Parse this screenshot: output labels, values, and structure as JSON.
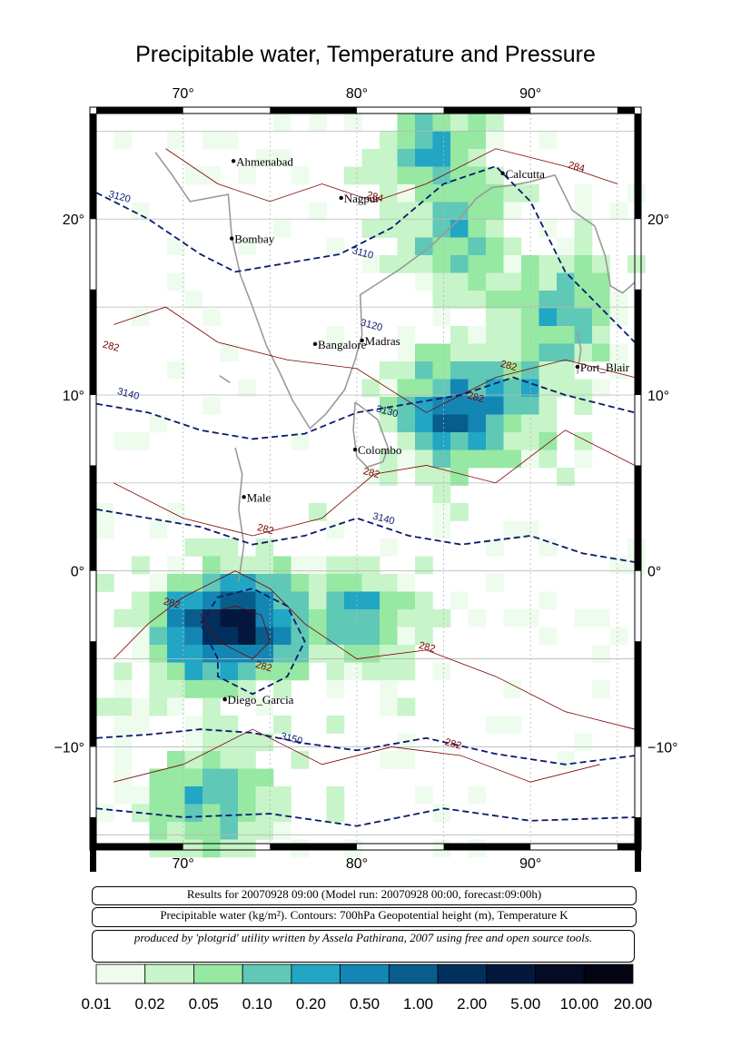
{
  "title": "Precipitable water, Temperature and Pressure",
  "map": {
    "lon_range": [
      65,
      96
    ],
    "lat_range": [
      -15.5,
      26
    ],
    "lon_ticks": [
      70,
      80,
      90
    ],
    "lat_ticks": [
      20,
      10,
      0,
      -10
    ],
    "lon_tick_labels": [
      "70°",
      "80°",
      "90°"
    ],
    "lat_tick_labels": [
      "20°",
      "10°",
      "0°",
      "−10°"
    ],
    "grid": true
  },
  "cities": [
    {
      "name": "Ahmenabad",
      "lon": 72.9,
      "lat": 23.3
    },
    {
      "name": "Nagpur",
      "lon": 79.1,
      "lat": 21.2
    },
    {
      "name": "Calcutta",
      "lon": 88.4,
      "lat": 22.6
    },
    {
      "name": "Bombay",
      "lon": 72.8,
      "lat": 18.9
    },
    {
      "name": "Bangalore",
      "lon": 77.6,
      "lat": 12.9
    },
    {
      "name": "Madras",
      "lon": 80.3,
      "lat": 13.1
    },
    {
      "name": "Port_Blair",
      "lon": 92.7,
      "lat": 11.6
    },
    {
      "name": "Colombo",
      "lon": 79.9,
      "lat": 6.9
    },
    {
      "name": "Male",
      "lon": 73.5,
      "lat": 4.2
    },
    {
      "name": "Diego_Garcia",
      "lon": 72.4,
      "lat": -7.3
    }
  ],
  "contour_labels": [
    {
      "text": "3120",
      "lon": 66.3,
      "lat": 21.1,
      "kind": "height"
    },
    {
      "text": "3110",
      "lon": 80.3,
      "lat": 17.9,
      "kind": "height"
    },
    {
      "text": "3120",
      "lon": 80.8,
      "lat": 13.8,
      "kind": "height"
    },
    {
      "text": "3140",
      "lon": 66.8,
      "lat": 9.9,
      "kind": "height"
    },
    {
      "text": "3130",
      "lon": 81.7,
      "lat": 8.9,
      "kind": "height"
    },
    {
      "text": "3140",
      "lon": 81.5,
      "lat": 2.8,
      "kind": "height"
    },
    {
      "text": "3150",
      "lon": 76.2,
      "lat": -9.7,
      "kind": "height"
    },
    {
      "text": "282",
      "lon": 65.8,
      "lat": 12.6,
      "kind": "temp"
    },
    {
      "text": "284",
      "lon": 81.0,
      "lat": 21.1,
      "kind": "temp"
    },
    {
      "text": "284",
      "lon": 92.6,
      "lat": 22.8,
      "kind": "temp"
    },
    {
      "text": "282",
      "lon": 88.7,
      "lat": 11.5,
      "kind": "temp"
    },
    {
      "text": "282",
      "lon": 86.8,
      "lat": 9.7,
      "kind": "temp"
    },
    {
      "text": "282",
      "lon": 80.8,
      "lat": 5.4,
      "kind": "temp"
    },
    {
      "text": "282",
      "lon": 74.7,
      "lat": 2.2,
      "kind": "temp"
    },
    {
      "text": "282",
      "lon": 69.3,
      "lat": -2.0,
      "kind": "temp"
    },
    {
      "text": "282",
      "lon": 74.6,
      "lat": -5.6,
      "kind": "temp"
    },
    {
      "text": "282",
      "lon": 84.0,
      "lat": -4.5,
      "kind": "temp"
    },
    {
      "text": "282",
      "lon": 85.5,
      "lat": -10.0,
      "kind": "temp"
    }
  ],
  "info": {
    "line1": "Results for 20070928 09:00 (Model run: 20070928 00:00, forecast:09:00h)",
    "line2": "Precipitable water (kg/m²).  Contours: 700hPa Geopotential height (m), Temperature K",
    "credit": "produced by 'plotgrid' utility written by Assela Pathirana, 2007 using free and open source tools."
  },
  "colorbar": {
    "labels": [
      "0.01",
      "0.02",
      "0.05",
      "0.10",
      "0.20",
      "0.50",
      "1.00",
      "2.00",
      "5.00",
      "10.00",
      "20.00"
    ],
    "colors": [
      "#eefcee",
      "#c7f4c8",
      "#96e8a3",
      "#5fc8b6",
      "#21a6c4",
      "#1486b4",
      "#085d8c",
      "#02305c",
      "#03183c",
      "#040b24",
      "#020411"
    ]
  },
  "colors": {
    "height_contour": "#0c1a6e",
    "temp_contour": "#7a0000",
    "coast": "#9a9a9a",
    "grid": "#b8b8b8"
  }
}
